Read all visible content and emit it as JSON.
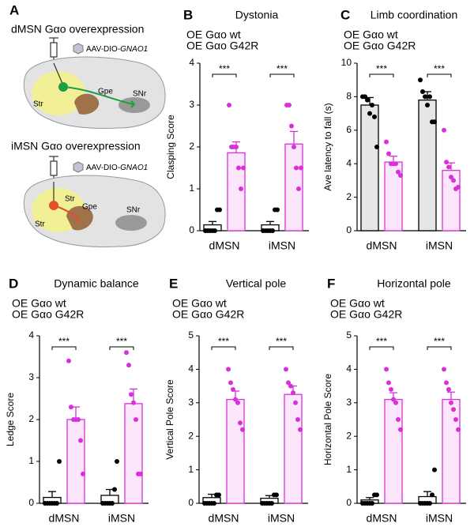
{
  "panel_a": {
    "label": "A",
    "sections": [
      {
        "title": "dMSN Gαo overexpression",
        "color": "#1a9a3c",
        "vector": "AAV-DIO-",
        "gene": "GNAO1",
        "regions": [
          "Str",
          "Gpe",
          "SNr"
        ]
      },
      {
        "title": "iMSN Gαo overexpression",
        "color": "#e0502a",
        "vector": "AAV-DIO-",
        "gene": "GNAO1",
        "regions": [
          "Str",
          "Str",
          "Gpe",
          "SNr"
        ]
      }
    ]
  },
  "chart_data": [
    {
      "type": "bar",
      "panel": "B",
      "title": "Dystonia",
      "ylabel": "Clasping Score",
      "categories": [
        "dMSN",
        "iMSN"
      ],
      "category_colors": [
        "#1a9a3c",
        "#d4472a"
      ],
      "series": [
        {
          "name": "OE Gαo wt",
          "color": "#000000",
          "fill": "#ffffff",
          "values": [
            0.14,
            0.14
          ],
          "errors": [
            0.08,
            0.08
          ],
          "points": [
            [
              0,
              0,
              0,
              0,
              0,
              0.5,
              0.5
            ],
            [
              0,
              0,
              0,
              0,
              0,
              0.5,
              0.5
            ]
          ]
        },
        {
          "name": "OE Gαo G42R",
          "color": "#d930d9",
          "fill": "#fce6fc",
          "values": [
            1.86,
            2.07
          ],
          "errors": [
            0.26,
            0.3
          ],
          "points": [
            [
              3,
              2,
              2,
              2,
              1.5,
              1,
              1.5
            ],
            [
              3,
              3,
              2.5,
              2,
              1.5,
              1,
              1.5
            ]
          ]
        }
      ],
      "significance": [
        "***",
        "***"
      ],
      "ylim": [
        0,
        4
      ],
      "yticks": [
        0,
        1,
        2,
        3,
        4
      ]
    },
    {
      "type": "bar",
      "panel": "C",
      "title": "Limb coordination",
      "ylabel": "Ave latency to fall (s)",
      "categories": [
        "dMSN",
        "iMSN"
      ],
      "category_colors": [
        "#1a9a3c",
        "#d4472a"
      ],
      "series": [
        {
          "name": "OE Gαo wt",
          "color": "#000000",
          "fill": "#e6e6e6",
          "values": [
            7.5,
            7.8
          ],
          "errors": [
            0.45,
            0.5
          ],
          "points": [
            [
              8,
              8,
              7.8,
              7,
              7.5,
              6.8,
              5
            ],
            [
              9,
              8.3,
              8,
              7.5,
              8,
              6.5,
              6.5
            ]
          ]
        },
        {
          "name": "OE Gαo G42R",
          "color": "#d930d9",
          "fill": "#fce6fc",
          "values": [
            4.1,
            3.6
          ],
          "errors": [
            0.35,
            0.45
          ],
          "points": [
            [
              5.3,
              4.6,
              4,
              4,
              4,
              3.5,
              3.3
            ],
            [
              6,
              4.1,
              3.8,
              3.2,
              3,
              2.5,
              2.6
            ]
          ]
        }
      ],
      "significance": [
        "***",
        "***"
      ],
      "ylim": [
        0,
        10
      ],
      "yticks": [
        0,
        2,
        4,
        6,
        8,
        10
      ]
    },
    {
      "type": "bar",
      "panel": "D",
      "title": "Dynamic balance",
      "ylabel": "Ledge Score",
      "categories": [
        "dMSN",
        "iMSN"
      ],
      "category_colors": [
        "#1a9a3c",
        "#d4472a"
      ],
      "series": [
        {
          "name": "OE Gαo wt",
          "color": "#000000",
          "fill": "#ffffff",
          "values": [
            0.14,
            0.19
          ],
          "errors": [
            0.14,
            0.14
          ],
          "points": [
            [
              0,
              0,
              0,
              0,
              0,
              0,
              1
            ],
            [
              0,
              0,
              0,
              0,
              0,
              0.33,
              1
            ]
          ]
        },
        {
          "name": "OE Gαo G42R",
          "color": "#d930d9",
          "fill": "#fce6fc",
          "values": [
            2.0,
            2.38
          ],
          "errors": [
            0.3,
            0.35
          ],
          "points": [
            [
              3.4,
              2.3,
              2,
              2,
              2,
              1.5,
              0.7
            ],
            [
              3.6,
              3.3,
              2.6,
              2.4,
              2,
              0.7,
              0.7
            ]
          ]
        }
      ],
      "significance": [
        "***",
        "***"
      ],
      "ylim": [
        0,
        4
      ],
      "yticks": [
        0,
        1,
        2,
        3,
        4
      ]
    },
    {
      "type": "bar",
      "panel": "E",
      "title": "Vertical pole",
      "ylabel": "Vertical Pole Score",
      "categories": [
        "dMSN",
        "iMSN"
      ],
      "category_colors": [
        "#1a9a3c",
        "#d4472a"
      ],
      "series": [
        {
          "name": "OE Gαo wt",
          "color": "#000000",
          "fill": "#ffffff",
          "values": [
            0.17,
            0.15
          ],
          "errors": [
            0.1,
            0.08
          ],
          "points": [
            [
              0,
              0,
              0,
              0,
              0,
              0.25,
              0.25
            ],
            [
              0,
              0,
              0,
              0,
              0,
              0.25,
              0.25
            ]
          ]
        },
        {
          "name": "OE Gαo G42R",
          "color": "#d930d9",
          "fill": "#fce6fc",
          "values": [
            3.1,
            3.25
          ],
          "errors": [
            0.25,
            0.25
          ],
          "points": [
            [
              4,
              3.6,
              3.4,
              3.1,
              3,
              2.4,
              2.2
            ],
            [
              4,
              3.6,
              3.5,
              3.3,
              3,
              2.5,
              2.2
            ]
          ]
        }
      ],
      "significance": [
        "***",
        "***"
      ],
      "ylim": [
        0,
        5
      ],
      "yticks": [
        0,
        1,
        2,
        3,
        4,
        5
      ]
    },
    {
      "type": "bar",
      "panel": "F",
      "title": "Horizontal pole",
      "ylabel": "Horizontal Pole Score",
      "categories": [
        "dMSN",
        "iMSN"
      ],
      "category_colors": [
        "#1a9a3c",
        "#d4472a"
      ],
      "series": [
        {
          "name": "OE Gαo wt",
          "color": "#000000",
          "fill": "#ffffff",
          "values": [
            0.1,
            0.2
          ],
          "errors": [
            0.07,
            0.15
          ],
          "points": [
            [
              0,
              0,
              0,
              0,
              0,
              0.25,
              0.25
            ],
            [
              0,
              0,
              0,
              0,
              0,
              0.25,
              1
            ]
          ]
        },
        {
          "name": "OE Gαo G42R",
          "color": "#d930d9",
          "fill": "#fce6fc",
          "values": [
            3.1,
            3.1
          ],
          "errors": [
            0.2,
            0.22
          ],
          "points": [
            [
              4,
              3.6,
              3.4,
              3.1,
              3,
              2.5,
              2.2
            ],
            [
              4,
              3.6,
              3.4,
              3,
              2.8,
              2.5,
              2.2
            ]
          ]
        }
      ],
      "significance": [
        "***",
        "***"
      ],
      "ylim": [
        0,
        5
      ],
      "yticks": [
        0,
        1,
        2,
        3,
        4,
        5
      ]
    }
  ]
}
